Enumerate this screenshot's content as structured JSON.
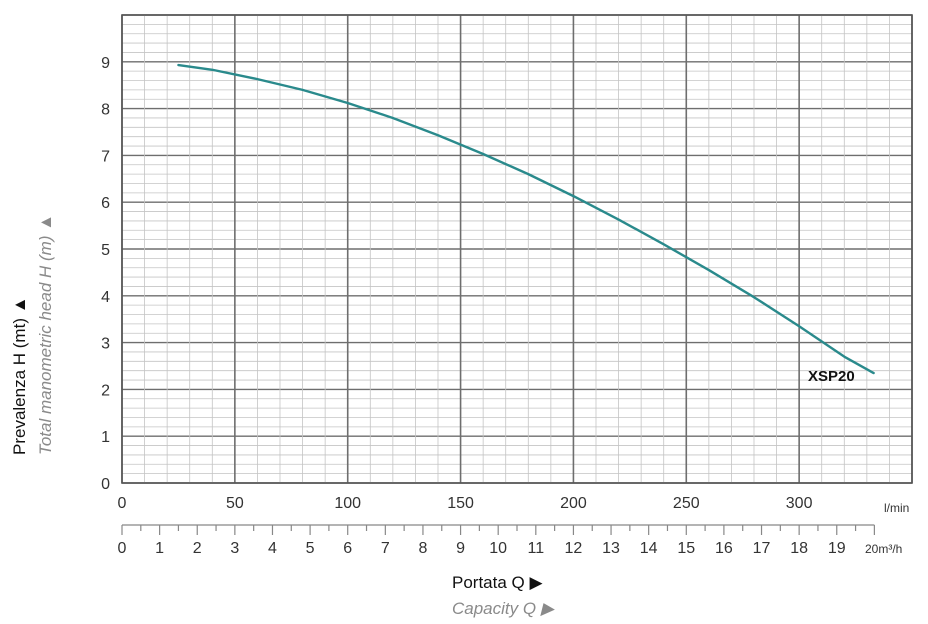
{
  "chart_data": {
    "type": "line",
    "ylabel": "Prevalenza H (mt) ▲",
    "ylabel_secondary": "Total manometric head H (m) ▲",
    "xlabel": "Portata Q ▶",
    "xlabel_secondary": "Capacity Q ▶",
    "x_unit": "l/min",
    "x2_unit": "20m³/h",
    "xlim": [
      0,
      350
    ],
    "ylim": [
      0,
      10
    ],
    "y_ticks": [
      "0",
      "1",
      "2",
      "3",
      "4",
      "5",
      "6",
      "7",
      "8",
      "9"
    ],
    "x_ticks": [
      "0",
      "50",
      "100",
      "150",
      "200",
      "250",
      "300"
    ],
    "x2_ticks": [
      "0",
      "1",
      "2",
      "3",
      "4",
      "5",
      "6",
      "7",
      "8",
      "9",
      "10",
      "11",
      "12",
      "13",
      "14",
      "15",
      "16",
      "17",
      "18",
      "19"
    ],
    "grid": true,
    "series": [
      {
        "name": "XSP20",
        "color": "#2a8a8c",
        "x": [
          25,
          40,
          60,
          80,
          100,
          120,
          140,
          160,
          180,
          200,
          220,
          240,
          260,
          280,
          300,
          320,
          333
        ],
        "y": [
          8.93,
          8.83,
          8.63,
          8.4,
          8.12,
          7.8,
          7.43,
          7.03,
          6.6,
          6.13,
          5.63,
          5.1,
          4.55,
          3.97,
          3.35,
          2.7,
          2.35
        ]
      }
    ]
  }
}
